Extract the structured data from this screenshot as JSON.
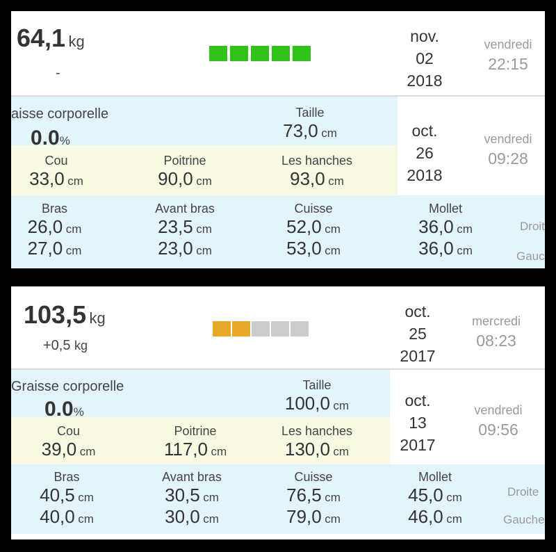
{
  "entries": [
    {
      "weight": "64,1",
      "weight_unit": "kg",
      "delta": "-",
      "delta_unit": "",
      "bars": [
        "#2fc218",
        "#2fc218",
        "#2fc218",
        "#2fc218",
        "#2fc218"
      ],
      "date": {
        "month": "nov.",
        "day": "02",
        "year": "2018",
        "weekday": "vendredi",
        "time": "22:15"
      },
      "body_fat_label": "aisse corporelle",
      "body_fat_value": "0.0",
      "body_fat_unit": "%",
      "taille_label": "Taille",
      "taille_value": "73,0",
      "mdate": {
        "month": "oct.",
        "day": "26",
        "year": "2018",
        "weekday": "vendredi",
        "time": "09:28"
      },
      "cou_label": "Cou",
      "cou_value": "33,0",
      "poitrine_label": "Poitrine",
      "poitrine_value": "90,0",
      "hanches_label": "Les hanches",
      "hanches_value": "93,0",
      "bras_label": "Bras",
      "bras_r": "26,0",
      "bras_l": "27,0",
      "avant_label": "Avant bras",
      "avant_r": "23,5",
      "avant_l": "23,0",
      "cuisse_label": "Cuisse",
      "cuisse_r": "52,0",
      "cuisse_l": "53,0",
      "mollet_label": "Mollet",
      "mollet_r": "36,0",
      "mollet_l": "36,0",
      "droite": "Droit",
      "gauche": "Gauc",
      "cm": "cm"
    },
    {
      "weight": "103,5",
      "weight_unit": "kg",
      "delta": "+0,5",
      "delta_unit": "kg",
      "bars": [
        "#e8a92b",
        "#e8a92b",
        "#cccccc",
        "#cccccc",
        "#cccccc"
      ],
      "date": {
        "month": "oct.",
        "day": "25",
        "year": "2017",
        "weekday": "mercredi",
        "time": "08:23"
      },
      "body_fat_label": "Graisse corporelle",
      "body_fat_value": "0.0",
      "body_fat_unit": "%",
      "taille_label": "Taille",
      "taille_value": "100,0",
      "mdate": {
        "month": "oct.",
        "day": "13",
        "year": "2017",
        "weekday": "vendredi",
        "time": "09:56"
      },
      "cou_label": "Cou",
      "cou_value": "39,0",
      "poitrine_label": "Poitrine",
      "poitrine_value": "117,0",
      "hanches_label": "Les hanches",
      "hanches_value": "130,0",
      "bras_label": "Bras",
      "bras_r": "40,5",
      "bras_l": "40,0",
      "avant_label": "Avant bras",
      "avant_r": "30,5",
      "avant_l": "30,0",
      "cuisse_label": "Cuisse",
      "cuisse_r": "76,5",
      "cuisse_l": "79,0",
      "mollet_label": "Mollet",
      "mollet_r": "45,0",
      "mollet_l": "46,0",
      "droite": "Droite",
      "gauche": "Gauche",
      "cm": "cm"
    }
  ]
}
